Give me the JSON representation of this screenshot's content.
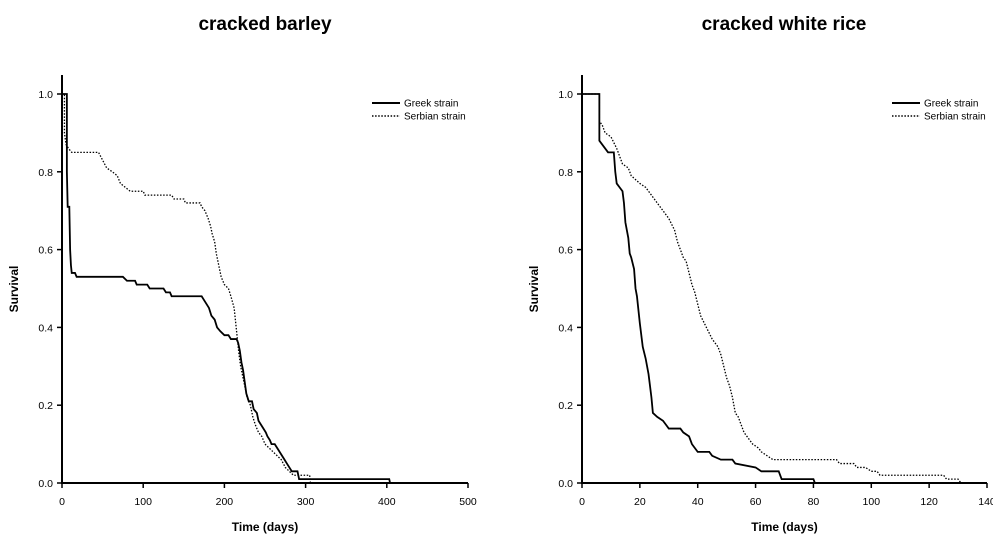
{
  "chart_data": [
    {
      "type": "line",
      "title": "cracked barley",
      "xlabel": "Time (days)",
      "ylabel": "Survival",
      "xlim": [
        0,
        500
      ],
      "ylim": [
        0,
        1.05
      ],
      "x_ticks": [
        "0",
        "100",
        "200",
        "300",
        "400",
        "500"
      ],
      "y_ticks": [
        "0.0",
        "0.2",
        "0.4",
        "0.6",
        "0.8",
        "1.0"
      ],
      "legend_position": "top-right",
      "series": [
        {
          "name": "Greek strain",
          "style": "solid",
          "points": [
            [
              0,
              1.0
            ],
            [
              6,
              1.0
            ],
            [
              6,
              0.8
            ],
            [
              7,
              0.71
            ],
            [
              9,
              0.71
            ],
            [
              10,
              0.6
            ],
            [
              11,
              0.56
            ],
            [
              12,
              0.54
            ],
            [
              16,
              0.54
            ],
            [
              18,
              0.53
            ],
            [
              75,
              0.53
            ],
            [
              80,
              0.52
            ],
            [
              90,
              0.52
            ],
            [
              92,
              0.51
            ],
            [
              105,
              0.51
            ],
            [
              108,
              0.5
            ],
            [
              125,
              0.5
            ],
            [
              128,
              0.49
            ],
            [
              133,
              0.49
            ],
            [
              135,
              0.48
            ],
            [
              172,
              0.48
            ],
            [
              175,
              0.47
            ],
            [
              178,
              0.46
            ],
            [
              181,
              0.45
            ],
            [
              184,
              0.43
            ],
            [
              188,
              0.42
            ],
            [
              191,
              0.4
            ],
            [
              195,
              0.39
            ],
            [
              200,
              0.38
            ],
            [
              205,
              0.38
            ],
            [
              208,
              0.37
            ],
            [
              215,
              0.37
            ],
            [
              217,
              0.36
            ],
            [
              219,
              0.34
            ],
            [
              221,
              0.31
            ],
            [
              223,
              0.29
            ],
            [
              225,
              0.26
            ],
            [
              227,
              0.23
            ],
            [
              230,
              0.21
            ],
            [
              234,
              0.21
            ],
            [
              236,
              0.19
            ],
            [
              240,
              0.18
            ],
            [
              242,
              0.16
            ],
            [
              245,
              0.15
            ],
            [
              248,
              0.14
            ],
            [
              251,
              0.13
            ],
            [
              253,
              0.12
            ],
            [
              256,
              0.11
            ],
            [
              258,
              0.1
            ],
            [
              262,
              0.1
            ],
            [
              265,
              0.09
            ],
            [
              268,
              0.08
            ],
            [
              271,
              0.07
            ],
            [
              274,
              0.06
            ],
            [
              277,
              0.05
            ],
            [
              280,
              0.04
            ],
            [
              283,
              0.03
            ],
            [
              290,
              0.03
            ],
            [
              292,
              0.01
            ],
            [
              403,
              0.01
            ],
            [
              404,
              0.0
            ]
          ]
        },
        {
          "name": "Serbian strain",
          "style": "dotted",
          "points": [
            [
              0,
              1.0
            ],
            [
              3,
              1.0
            ],
            [
              3,
              0.9
            ],
            [
              5,
              0.87
            ],
            [
              8,
              0.86
            ],
            [
              12,
              0.85
            ],
            [
              45,
              0.85
            ],
            [
              50,
              0.83
            ],
            [
              55,
              0.81
            ],
            [
              62,
              0.8
            ],
            [
              68,
              0.79
            ],
            [
              72,
              0.77
            ],
            [
              78,
              0.76
            ],
            [
              84,
              0.75
            ],
            [
              100,
              0.75
            ],
            [
              102,
              0.74
            ],
            [
              135,
              0.74
            ],
            [
              138,
              0.73
            ],
            [
              150,
              0.73
            ],
            [
              152,
              0.72
            ],
            [
              170,
              0.72
            ],
            [
              172,
              0.71
            ],
            [
              176,
              0.7
            ],
            [
              180,
              0.68
            ],
            [
              183,
              0.66
            ],
            [
              185,
              0.64
            ],
            [
              188,
              0.62
            ],
            [
              190,
              0.59
            ],
            [
              193,
              0.56
            ],
            [
              196,
              0.53
            ],
            [
              200,
              0.51
            ],
            [
              205,
              0.5
            ],
            [
              208,
              0.48
            ],
            [
              212,
              0.45
            ],
            [
              214,
              0.41
            ],
            [
              216,
              0.37
            ],
            [
              218,
              0.33
            ],
            [
              220,
              0.3
            ],
            [
              222,
              0.28
            ],
            [
              225,
              0.25
            ],
            [
              228,
              0.22
            ],
            [
              232,
              0.2
            ],
            [
              235,
              0.17
            ],
            [
              238,
              0.15
            ],
            [
              242,
              0.13
            ],
            [
              246,
              0.12
            ],
            [
              250,
              0.1
            ],
            [
              255,
              0.09
            ],
            [
              260,
              0.08
            ],
            [
              265,
              0.07
            ],
            [
              270,
              0.06
            ],
            [
              275,
              0.04
            ],
            [
              280,
              0.03
            ],
            [
              285,
              0.02
            ],
            [
              305,
              0.02
            ],
            [
              306,
              0.0
            ]
          ]
        }
      ]
    },
    {
      "type": "line",
      "title": "cracked white rice",
      "xlabel": "Time (days)",
      "ylabel": "Survival",
      "xlim": [
        0,
        140
      ],
      "ylim": [
        0,
        1.05
      ],
      "x_ticks": [
        "0",
        "20",
        "40",
        "60",
        "80",
        "100",
        "120",
        "140"
      ],
      "y_ticks": [
        "0.0",
        "0.2",
        "0.4",
        "0.6",
        "0.8",
        "1.0"
      ],
      "legend_position": "top-right",
      "series": [
        {
          "name": "Greek strain",
          "style": "solid",
          "points": [
            [
              0,
              1.0
            ],
            [
              6,
              1.0
            ],
            [
              6,
              0.88
            ],
            [
              7,
              0.87
            ],
            [
              8,
              0.86
            ],
            [
              9,
              0.85
            ],
            [
              11,
              0.85
            ],
            [
              11.5,
              0.8
            ],
            [
              12,
              0.77
            ],
            [
              13,
              0.76
            ],
            [
              14,
              0.75
            ],
            [
              14.5,
              0.72
            ],
            [
              15,
              0.67
            ],
            [
              16,
              0.63
            ],
            [
              16.5,
              0.59
            ],
            [
              17,
              0.58
            ],
            [
              18,
              0.55
            ],
            [
              18.5,
              0.5
            ],
            [
              19,
              0.48
            ],
            [
              20,
              0.41
            ],
            [
              21,
              0.35
            ],
            [
              22,
              0.32
            ],
            [
              23,
              0.28
            ],
            [
              24,
              0.22
            ],
            [
              24.5,
              0.18
            ],
            [
              26,
              0.17
            ],
            [
              28,
              0.16
            ],
            [
              29,
              0.15
            ],
            [
              30,
              0.14
            ],
            [
              34,
              0.14
            ],
            [
              35,
              0.13
            ],
            [
              37,
              0.12
            ],
            [
              38,
              0.1
            ],
            [
              40,
              0.08
            ],
            [
              44,
              0.08
            ],
            [
              45,
              0.07
            ],
            [
              48,
              0.06
            ],
            [
              52,
              0.06
            ],
            [
              53,
              0.05
            ],
            [
              60,
              0.04
            ],
            [
              62,
              0.03
            ],
            [
              68,
              0.03
            ],
            [
              69,
              0.01
            ],
            [
              80,
              0.01
            ],
            [
              80.5,
              0.0
            ]
          ]
        },
        {
          "name": "Serbian strain",
          "style": "dotted",
          "points": [
            [
              0,
              1.0
            ],
            [
              6,
              1.0
            ],
            [
              6,
              0.93
            ],
            [
              7,
              0.92
            ],
            [
              8,
              0.9
            ],
            [
              10,
              0.89
            ],
            [
              12,
              0.86
            ],
            [
              13,
              0.84
            ],
            [
              14,
              0.82
            ],
            [
              16,
              0.81
            ],
            [
              17,
              0.79
            ],
            [
              20,
              0.77
            ],
            [
              22,
              0.76
            ],
            [
              24,
              0.74
            ],
            [
              26,
              0.72
            ],
            [
              28,
              0.7
            ],
            [
              30,
              0.68
            ],
            [
              32,
              0.65
            ],
            [
              33,
              0.62
            ],
            [
              34,
              0.6
            ],
            [
              35,
              0.58
            ],
            [
              36,
              0.57
            ],
            [
              37,
              0.54
            ],
            [
              38,
              0.51
            ],
            [
              39,
              0.49
            ],
            [
              40,
              0.46
            ],
            [
              41,
              0.43
            ],
            [
              43,
              0.4
            ],
            [
              45,
              0.37
            ],
            [
              47,
              0.35
            ],
            [
              48,
              0.33
            ],
            [
              49,
              0.3
            ],
            [
              50,
              0.27
            ],
            [
              51,
              0.25
            ],
            [
              52,
              0.22
            ],
            [
              53,
              0.18
            ],
            [
              54,
              0.17
            ],
            [
              55,
              0.15
            ],
            [
              56,
              0.13
            ],
            [
              57,
              0.12
            ],
            [
              59,
              0.1
            ],
            [
              61,
              0.09
            ],
            [
              62,
              0.08
            ],
            [
              64,
              0.07
            ],
            [
              66,
              0.06
            ],
            [
              88,
              0.06
            ],
            [
              89,
              0.05
            ],
            [
              94,
              0.05
            ],
            [
              95,
              0.04
            ],
            [
              98,
              0.04
            ],
            [
              100,
              0.03
            ],
            [
              102,
              0.03
            ],
            [
              103,
              0.02
            ],
            [
              125,
              0.02
            ],
            [
              126,
              0.01
            ],
            [
              130,
              0.01
            ],
            [
              131,
              0.0
            ]
          ]
        }
      ]
    }
  ]
}
